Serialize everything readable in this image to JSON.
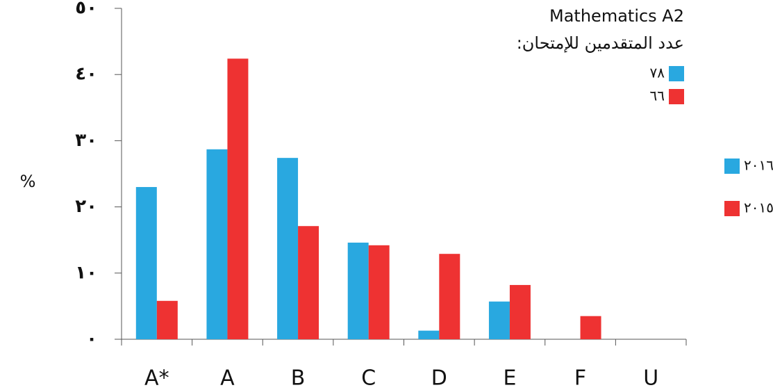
{
  "chart_data": {
    "type": "bar",
    "title": "Mathematics A2",
    "subtitle": "عدد المتقدمين للإمتحان:",
    "candidates_labels": [
      "٧٨",
      "٦٦"
    ],
    "y_label": "%",
    "categories": [
      "A*",
      "A",
      "B",
      "C",
      "D",
      "E",
      "F",
      "U"
    ],
    "series": [
      {
        "name": "٢٠١٦",
        "color": "#29a8e0",
        "values": [
          23.0,
          28.7,
          27.4,
          14.6,
          1.3,
          5.7,
          0,
          0
        ]
      },
      {
        "name": "٢٠١٥",
        "color": "#ee3232",
        "values": [
          5.8,
          42.4,
          17.1,
          14.2,
          12.9,
          8.2,
          3.5,
          0
        ]
      }
    ],
    "ylim": [
      0,
      50
    ],
    "yticks": [
      {
        "value": 0,
        "label": "٠"
      },
      {
        "value": 10,
        "label": "١٠"
      },
      {
        "value": 20,
        "label": "٢٠"
      },
      {
        "value": 30,
        "label": "٣٠"
      },
      {
        "value": 40,
        "label": "٤٠"
      },
      {
        "value": 50,
        "label": "٥٠"
      }
    ],
    "grid": false
  }
}
